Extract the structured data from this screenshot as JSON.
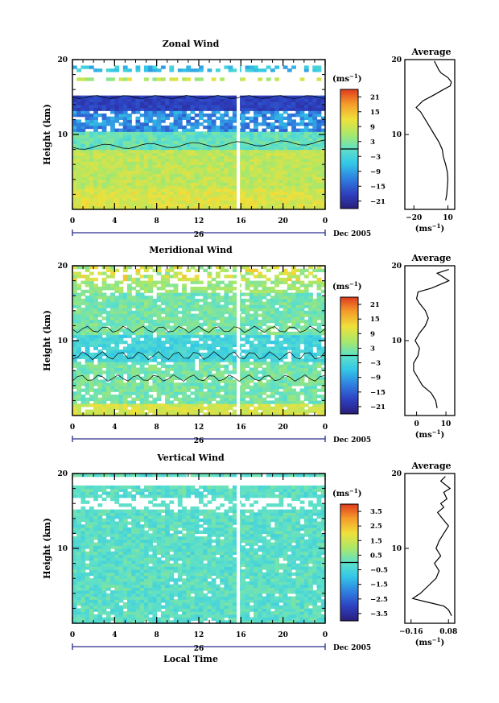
{
  "chart_data": [
    {
      "type": "heatmap",
      "title": "Zonal Wind",
      "ylabel": "Height (km)",
      "ylim": [
        0,
        20
      ],
      "yticks": [
        10,
        20
      ],
      "xticks": [
        "0",
        "4",
        "8",
        "12",
        "16",
        "20",
        "0"
      ],
      "date_day": "26",
      "date_label": "Dec 2005",
      "colorbar_unit": "(ms",
      "colorbar_unit_exp": "−1",
      "colorbar_ticks": [
        "21",
        "15",
        "9",
        "3",
        "−3",
        "−9",
        "−15",
        "−21"
      ],
      "colorbar_range": [
        -24,
        24
      ],
      "profile": {
        "title": "Average",
        "xlabel": "(ms",
        "xlabel_exp": "−1",
        "xticks": [
          "−20",
          "10"
        ],
        "yticks": [
          "10",
          "20"
        ],
        "xlim": [
          -28,
          16
        ],
        "points": [
          [
            8,
            1.2
          ],
          [
            9,
            2
          ],
          [
            9.5,
            3
          ],
          [
            10,
            4
          ],
          [
            9.5,
            5
          ],
          [
            8,
            6
          ],
          [
            6,
            7
          ],
          [
            5,
            8
          ],
          [
            2,
            9
          ],
          [
            -2,
            10
          ],
          [
            -6,
            11
          ],
          [
            -10,
            12
          ],
          [
            -14,
            13
          ],
          [
            -18,
            13.6
          ],
          [
            -12,
            14.5
          ],
          [
            -2,
            15.3
          ],
          [
            6,
            16
          ],
          [
            12,
            16.5
          ],
          [
            13,
            17
          ],
          [
            10,
            17.6
          ],
          [
            4,
            18.2
          ],
          [
            2,
            18.6
          ],
          [
            0,
            19.2
          ],
          [
            -2,
            19.8
          ]
        ]
      }
    },
    {
      "type": "heatmap",
      "title": "Meridional Wind",
      "ylabel": "Height (km)",
      "ylim": [
        0,
        20
      ],
      "yticks": [
        10,
        20
      ],
      "xticks": [
        "0",
        "4",
        "8",
        "12",
        "16",
        "20",
        "0"
      ],
      "date_day": "26",
      "date_label": "Dec 2005",
      "colorbar_unit": "(ms",
      "colorbar_unit_exp": "−1",
      "colorbar_ticks": [
        "21",
        "15",
        "9",
        "3",
        "−3",
        "−9",
        "−15",
        "−21"
      ],
      "colorbar_range": [
        -24,
        24
      ],
      "profile": {
        "title": "Average",
        "xlabel": "(ms",
        "xlabel_exp": "−1",
        "xticks": [
          "0",
          "10"
        ],
        "yticks": [
          "10",
          "20"
        ],
        "xlim": [
          -4,
          13
        ],
        "points": [
          [
            7,
            1
          ],
          [
            6.5,
            2
          ],
          [
            5,
            3
          ],
          [
            2,
            4
          ],
          [
            0.5,
            5
          ],
          [
            -1,
            6
          ],
          [
            -1,
            7
          ],
          [
            0.5,
            8
          ],
          [
            1,
            9
          ],
          [
            -0.5,
            10
          ],
          [
            1,
            11
          ],
          [
            3,
            12
          ],
          [
            4,
            13
          ],
          [
            3,
            14
          ],
          [
            1,
            15
          ],
          [
            0,
            15.6
          ],
          [
            0.5,
            16.5
          ],
          [
            5,
            17
          ],
          [
            8,
            17.5
          ],
          [
            11,
            18
          ],
          [
            9,
            18.5
          ],
          [
            7,
            19
          ],
          [
            11,
            19.5
          ]
        ]
      }
    },
    {
      "type": "heatmap",
      "title": "Vertical Wind",
      "ylabel": "Height (km)",
      "xlabel": "Local Time",
      "ylim": [
        0,
        20
      ],
      "yticks": [
        10,
        20
      ],
      "xticks": [
        "0",
        "4",
        "8",
        "12",
        "16",
        "20",
        "0"
      ],
      "date_day": "26",
      "date_label": "Dec 2005",
      "colorbar_unit": "(ms",
      "colorbar_unit_exp": "−1",
      "colorbar_ticks": [
        "3.5",
        "2.5",
        "1.5",
        "0.5",
        "−0.5",
        "−1.5",
        "−2.5",
        "−3.5"
      ],
      "colorbar_range": [
        -4,
        4
      ],
      "profile": {
        "title": "Average",
        "xlabel": "(ms",
        "xlabel_exp": "−1",
        "xticks": [
          "−0.16",
          "0.08"
        ],
        "yticks": [
          "10",
          "20"
        ],
        "xlim": [
          -0.2,
          0.12
        ],
        "points": [
          [
            0.1,
            1
          ],
          [
            0.08,
            1.8
          ],
          [
            0.05,
            2.3
          ],
          [
            -0.05,
            2.8
          ],
          [
            -0.15,
            3.3
          ],
          [
            -0.1,
            4
          ],
          [
            -0.05,
            5
          ],
          [
            0,
            6
          ],
          [
            0.02,
            7
          ],
          [
            -0.01,
            8
          ],
          [
            0.03,
            9
          ],
          [
            0,
            10
          ],
          [
            0.02,
            11
          ],
          [
            0.05,
            12
          ],
          [
            0.08,
            13
          ],
          [
            0.04,
            14
          ],
          [
            0.01,
            14.8
          ],
          [
            0.05,
            15.5
          ],
          [
            0.03,
            16
          ],
          [
            0.07,
            16.6
          ],
          [
            0.05,
            17.5
          ],
          [
            0.09,
            18
          ],
          [
            0.03,
            19
          ],
          [
            0.06,
            19.6
          ]
        ]
      }
    }
  ]
}
